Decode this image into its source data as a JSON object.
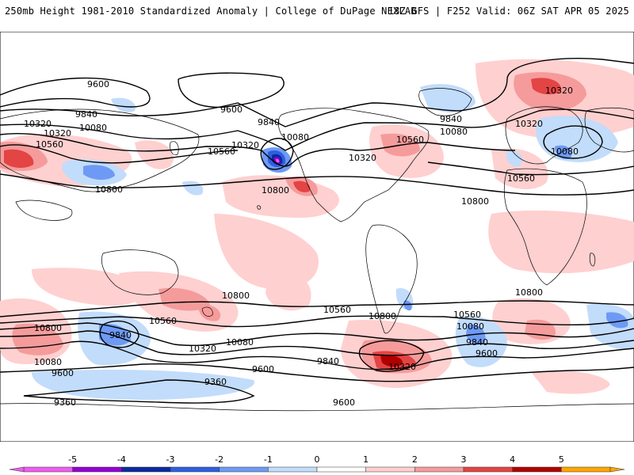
{
  "header": {
    "left_text": "250mb Height 1981-2010 Standardized Anomaly | College of DuPage NEXLAB",
    "right_text": "18Z GFS | F252 Valid: 06Z SAT APR 05 2025"
  },
  "colorbar": {
    "ticks": [
      "-5",
      "-4",
      "-3",
      "-2",
      "-1",
      "0",
      "1",
      "2",
      "3",
      "4",
      "5"
    ],
    "colors": [
      "#ee5dee",
      "#9400d3",
      "#0a2a9f",
      "#2f5fdf",
      "#6e9af5",
      "#c2dcfb",
      "#ffffff",
      "#ffd0d0",
      "#f59b9b",
      "#e34444",
      "#b00000",
      "#ffa500"
    ]
  },
  "contours": {
    "labels": [
      "9600",
      "9840",
      "10080",
      "10320",
      "10560",
      "10800",
      "9600",
      "9840",
      "10080",
      "10320",
      "10560",
      "10800",
      "10320",
      "10080",
      "9840",
      "10800",
      "10560",
      "10320",
      "10080",
      "10560",
      "10800",
      "9360",
      "9600",
      "9840",
      "10080",
      "10320",
      "10560",
      "10800",
      "10800",
      "10560",
      "10320",
      "10080",
      "9840",
      "9600",
      "9360",
      "9600",
      "9840",
      "10080",
      "10560",
      "10800",
      "10320",
      "10320",
      "10560",
      "10080",
      "9840",
      "9600",
      "10800",
      "10080"
    ]
  }
}
